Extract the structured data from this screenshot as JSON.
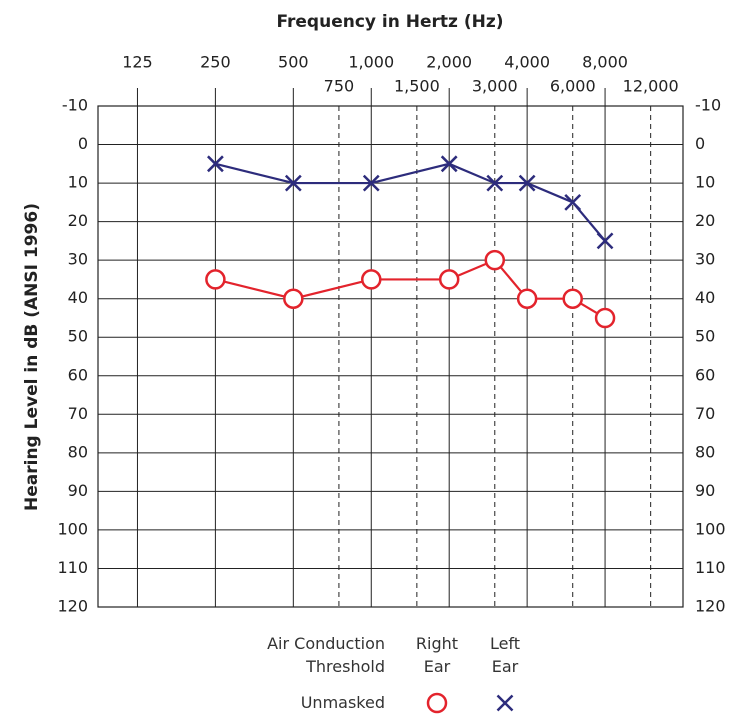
{
  "chart_data": {
    "type": "line",
    "title": "Frequency in Hertz (Hz)",
    "y_label": "Hearing Level in dB (ANSI 1996)",
    "x_scale": "log",
    "x": [
      250,
      500,
      1000,
      2000,
      3000,
      4000,
      6000,
      8000
    ],
    "xlim": [
      88,
      16000
    ],
    "xticks": [
      125,
      250,
      500,
      {
        "value": 1000,
        "label": "1,000"
      },
      {
        "value": 2000,
        "label": "2,000"
      },
      {
        "value": 4000,
        "label": "4,000"
      },
      {
        "value": 8000,
        "label": "8,000"
      }
    ],
    "xticks_minor": [
      750,
      {
        "value": 1500,
        "label": "1,500"
      },
      {
        "value": 3000,
        "label": "3,000"
      },
      {
        "value": 6000,
        "label": "6,000"
      },
      {
        "value": 12000,
        "label": "12,000"
      }
    ],
    "ylim": [
      120,
      -10
    ],
    "yticks": [
      -10,
      0,
      10,
      20,
      30,
      40,
      50,
      60,
      70,
      80,
      90,
      100,
      110,
      120
    ],
    "grid": true,
    "series": [
      {
        "name": "Right Ear",
        "color": "#e3232c",
        "marker": "circle",
        "values": [
          35,
          40,
          35,
          35,
          30,
          40,
          40,
          45
        ]
      },
      {
        "name": "Left Ear",
        "color": "#2d2c7c",
        "marker": "x",
        "values": [
          5,
          10,
          10,
          5,
          10,
          10,
          15,
          25
        ]
      }
    ],
    "legend": {
      "title": "Air Conduction Threshold",
      "row": "Unmasked"
    }
  }
}
